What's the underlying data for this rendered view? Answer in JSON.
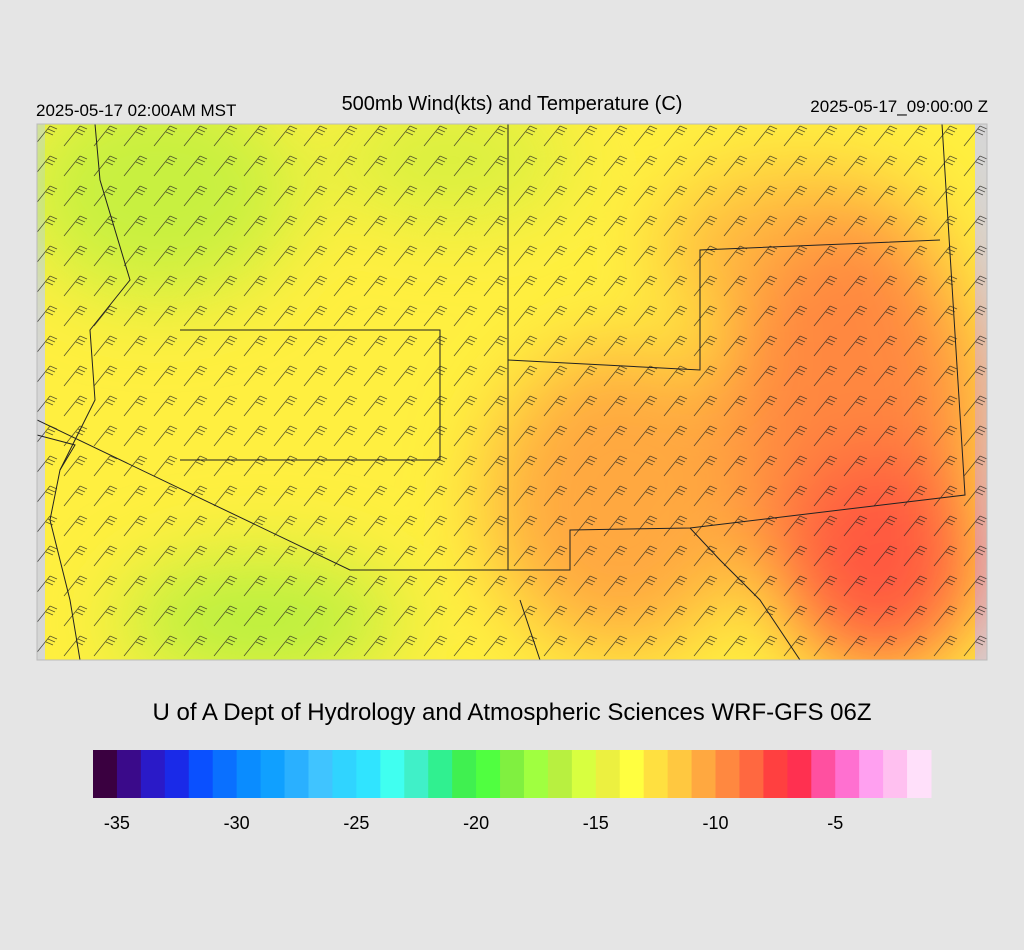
{
  "header": {
    "local_time": "2025-05-17 02:00AM MST",
    "title": "500mb Wind(kts) and Temperature (C)",
    "valid_time": "2025-05-17_09:00:00 Z"
  },
  "credit": "U of A Dept of Hydrology and Atmospheric Sciences WRF-GFS 06Z",
  "colorbar": {
    "range": [
      -36,
      -1
    ],
    "colors": [
      "#3a0040",
      "#3a0a8a",
      "#2a1ac8",
      "#1a2ae8",
      "#0a50ff",
      "#0a70ff",
      "#0a8cff",
      "#10a0ff",
      "#2ab0ff",
      "#40c4ff",
      "#30d4ff",
      "#30e4ff",
      "#40fff0",
      "#40f0c8",
      "#30f090",
      "#40f050",
      "#50ff40",
      "#80f040",
      "#a0ff40",
      "#b8f040",
      "#d8ff40",
      "#ecf040",
      "#ffff40",
      "#ffe040",
      "#ffc840",
      "#ffa840",
      "#ff8840",
      "#ff6840",
      "#ff4040",
      "#ff3050",
      "#ff50a0",
      "#ff70d0",
      "#ffa0f0",
      "#ffc0f0",
      "#ffe0fa"
    ],
    "ticks": [
      -35,
      -30,
      -25,
      -20,
      -15,
      -10,
      -5
    ]
  }
}
